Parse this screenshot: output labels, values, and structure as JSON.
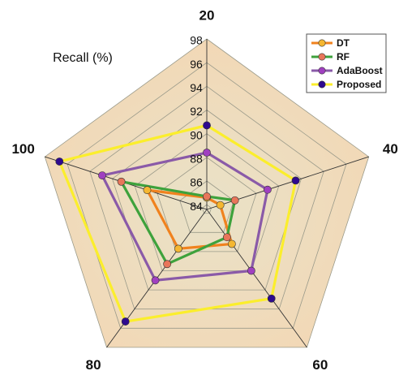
{
  "chart_data": {
    "type": "radar",
    "title": "Recall (%)",
    "categories": [
      "20",
      "40",
      "60",
      "80",
      "100"
    ],
    "rlim": [
      83.6,
      98
    ],
    "rticks": [
      84,
      86,
      88,
      90,
      92,
      94,
      96,
      98
    ],
    "legend": "upper right",
    "series": [
      {
        "name": "DT",
        "color": "#f0821e",
        "marker_color": "#f5b731",
        "values": [
          84.6,
          84.8,
          87.2,
          87.7,
          88.9
        ]
      },
      {
        "name": "RF",
        "color": "#3ea23c",
        "marker_color": "#e8765a",
        "values": [
          84.7,
          86.1,
          86.5,
          89.3,
          91.2
        ]
      },
      {
        "name": "AdaBoost",
        "color": "#8a5aa8",
        "marker_color": "#a040c0",
        "values": [
          88.4,
          89.0,
          90.0,
          91.0,
          92.9
        ]
      },
      {
        "name": "Proposed",
        "color": "#fbee2c",
        "marker_color": "#2e0a8e",
        "values": [
          90.7,
          91.5,
          92.9,
          95.3,
          96.7
        ]
      }
    ]
  }
}
